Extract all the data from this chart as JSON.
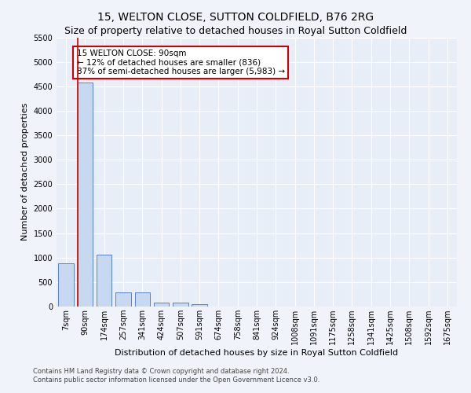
{
  "title": "15, WELTON CLOSE, SUTTON COLDFIELD, B76 2RG",
  "subtitle": "Size of property relative to detached houses in Royal Sutton Coldfield",
  "xlabel": "Distribution of detached houses by size in Royal Sutton Coldfield",
  "ylabel": "Number of detached properties",
  "footer_line1": "Contains HM Land Registry data © Crown copyright and database right 2024.",
  "footer_line2": "Contains public sector information licensed under the Open Government Licence v3.0.",
  "categories": [
    "7sqm",
    "90sqm",
    "174sqm",
    "257sqm",
    "341sqm",
    "424sqm",
    "507sqm",
    "591sqm",
    "674sqm",
    "758sqm",
    "841sqm",
    "924sqm",
    "1008sqm",
    "1091sqm",
    "1175sqm",
    "1258sqm",
    "1341sqm",
    "1425sqm",
    "1508sqm",
    "1592sqm",
    "1675sqm"
  ],
  "values": [
    880,
    4580,
    1060,
    290,
    290,
    80,
    80,
    55,
    0,
    0,
    0,
    0,
    0,
    0,
    0,
    0,
    0,
    0,
    0,
    0,
    0
  ],
  "bar_color": "#c6d9f0",
  "bar_edge_color": "#4472c4",
  "highlight_bar_index": 1,
  "highlight_line_color": "#cc0000",
  "annotation_text": "15 WELTON CLOSE: 90sqm\n← 12% of detached houses are smaller (836)\n87% of semi-detached houses are larger (5,983) →",
  "annotation_box_color": "#ffffff",
  "annotation_box_edge_color": "#cc0000",
  "ylim": [
    0,
    5500
  ],
  "yticks": [
    0,
    500,
    1000,
    1500,
    2000,
    2500,
    3000,
    3500,
    4000,
    4500,
    5000,
    5500
  ],
  "bg_color": "#f0f4fa",
  "plot_bg_color": "#e8eef8",
  "grid_color": "#ffffff",
  "title_fontsize": 10,
  "subtitle_fontsize": 9,
  "axis_label_fontsize": 8,
  "tick_fontsize": 7
}
